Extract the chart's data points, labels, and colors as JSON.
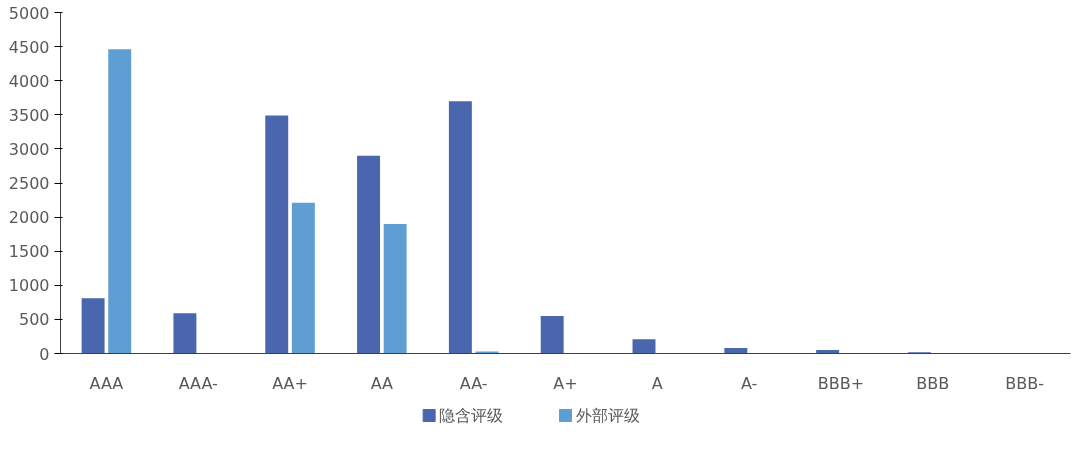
{
  "chart_data": {
    "type": "bar",
    "categories": [
      "AAA",
      "AAA-",
      "AA+",
      "AA",
      "AA-",
      "A+",
      "A",
      "A-",
      "BBB+",
      "BBB",
      "BBB-"
    ],
    "series": [
      {
        "name": "隐含评级",
        "color": "#4a66ae",
        "values": [
          810,
          590,
          3490,
          2900,
          3700,
          550,
          210,
          80,
          50,
          20,
          0
        ]
      },
      {
        "name": "外部评级",
        "color": "#5f9ed3",
        "values": [
          4460,
          0,
          2210,
          1900,
          30,
          0,
          0,
          0,
          0,
          0,
          0
        ]
      }
    ],
    "ylim": [
      0,
      5000
    ],
    "yticks": [
      0,
      500,
      1000,
      1500,
      2000,
      2500,
      3000,
      3500,
      4000,
      4500,
      5000
    ],
    "grid": false,
    "legend": "bottom"
  }
}
